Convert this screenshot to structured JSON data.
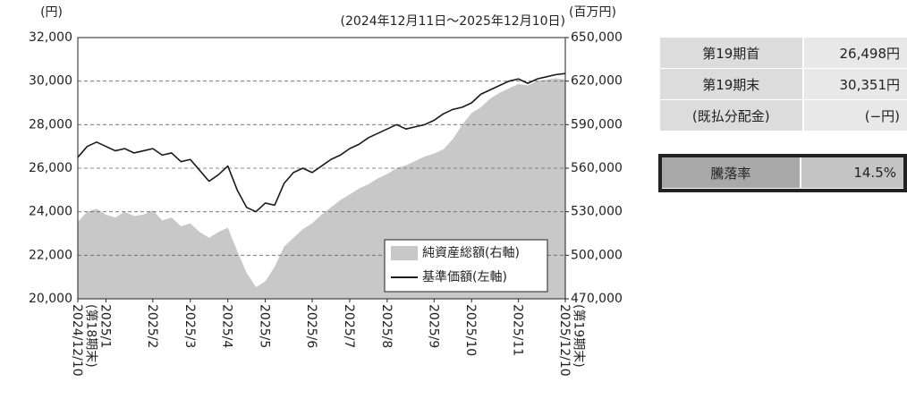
{
  "chart_data": {
    "type": "line_area",
    "subtitle": "(2024年12月11日～2025年12月10日)",
    "y_label": "(円)",
    "y2_label": "(百万円)",
    "categories": [
      "2024/12/10\n(第18期末)",
      null,
      null,
      "2025/1",
      null,
      null,
      null,
      null,
      "2025/2",
      null,
      null,
      null,
      "2025/3",
      null,
      null,
      null,
      "2025/4",
      null,
      null,
      null,
      "2025/5",
      null,
      null,
      null,
      null,
      "2025/6",
      null,
      null,
      null,
      "2025/7",
      null,
      null,
      null,
      "2025/8",
      null,
      null,
      null,
      null,
      "2025/9",
      null,
      null,
      null,
      "2025/10",
      null,
      null,
      null,
      null,
      "2025/11",
      null,
      null,
      null,
      null,
      "2025/12/10\n(第19期末)"
    ],
    "series": [
      {
        "name": "純資産総額(右軸)",
        "color": "#c8c8c8",
        "axis": "y2",
        "kind": "area",
        "values": [
          523000,
          530000,
          532000,
          528000,
          526000,
          530000,
          527000,
          528000,
          531000,
          524000,
          526000,
          520000,
          522000,
          516000,
          512000,
          516000,
          519000,
          503000,
          488000,
          478000,
          482000,
          492000,
          506000,
          512000,
          518000,
          522000,
          528000,
          533000,
          538000,
          542000,
          546000,
          549000,
          553000,
          556000,
          560000,
          562000,
          565000,
          568000,
          570000,
          573000,
          580000,
          590000,
          598000,
          602000,
          608000,
          612000,
          615000,
          618000,
          617000,
          620000,
          621000,
          622000,
          621000
        ]
      },
      {
        "name": "基準価額(左軸)",
        "color": "#1a1a1a",
        "axis": "y",
        "kind": "line",
        "values": [
          26500,
          27000,
          27200,
          27000,
          26800,
          26900,
          26700,
          26800,
          26900,
          26600,
          26700,
          26300,
          26400,
          25900,
          25400,
          25700,
          26100,
          25000,
          24200,
          24000,
          24400,
          24300,
          25300,
          25800,
          26000,
          25800,
          26100,
          26400,
          26600,
          26900,
          27100,
          27400,
          27600,
          27800,
          28000,
          27800,
          27900,
          28000,
          28200,
          28500,
          28700,
          28800,
          29000,
          29400,
          29600,
          29800,
          30000,
          30100,
          29900,
          30100,
          30200,
          30300,
          30350
        ]
      }
    ],
    "ylim": [
      20000,
      32000
    ],
    "yticks": [
      {
        "value": 20000,
        "label": "20,000"
      },
      {
        "value": 22000,
        "label": "22,000"
      },
      {
        "value": 24000,
        "label": "24,000"
      },
      {
        "value": 26000,
        "label": "26,000"
      },
      {
        "value": 28000,
        "label": "28,000"
      },
      {
        "value": 30000,
        "label": "30,000"
      },
      {
        "value": 32000,
        "label": "32,000"
      }
    ],
    "y2lim": [
      470000,
      650000
    ],
    "y2ticks": [
      {
        "value": 470000,
        "label": "470,000"
      },
      {
        "value": 500000,
        "label": "500,000"
      },
      {
        "value": 530000,
        "label": "530,000"
      },
      {
        "value": 560000,
        "label": "560,000"
      },
      {
        "value": 590000,
        "label": "590,000"
      },
      {
        "value": 620000,
        "label": "620,000"
      },
      {
        "value": 650000,
        "label": "650,000"
      }
    ],
    "grid": true,
    "legend": "lower right"
  },
  "table": {
    "rows": [
      [
        "第19期首",
        "26,498円"
      ],
      [
        "第19期末",
        "30,351円"
      ],
      [
        "(既払分配金)",
        "(−円)"
      ]
    ]
  },
  "change": {
    "label": "騰落率",
    "value": "14.5%"
  }
}
